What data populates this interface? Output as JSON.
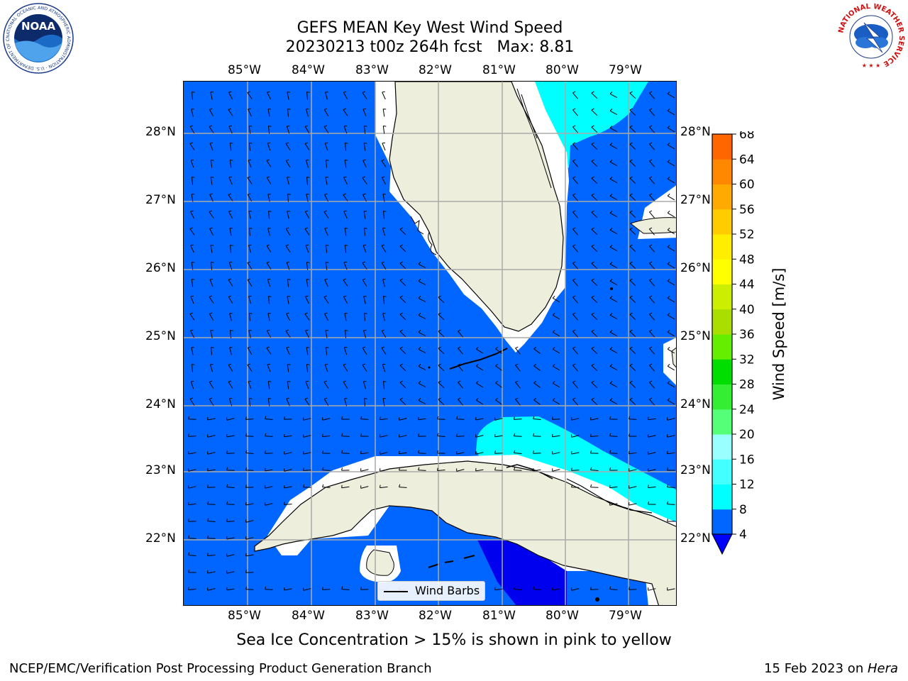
{
  "header": {
    "title_line1": "GEFS MEAN Key West Wind Speed",
    "title_line2": "20230213 t00z 264h fcst   Max: 8.81"
  },
  "map": {
    "lon_labels": [
      "85°W",
      "84°W",
      "83°W",
      "82°W",
      "81°W",
      "80°W",
      "79°W"
    ],
    "lat_labels": [
      "28°N",
      "27°N",
      "26°N",
      "25°N",
      "24°N",
      "23°N",
      "22°N"
    ],
    "legend_label": "Wind Barbs",
    "land_color": "#eeeedd",
    "grid_color": "#aaaaaa"
  },
  "colorbar": {
    "title": "Wind Speed [m/s]",
    "ticks": [
      "4",
      "8",
      "12",
      "16",
      "20",
      "24",
      "28",
      "32",
      "36",
      "40",
      "44",
      "48",
      "52",
      "56",
      "60",
      "64",
      "68"
    ],
    "colors": [
      "#0066ff",
      "#00ffff",
      "#44ffff",
      "#99ffff",
      "#55ff77",
      "#33ee33",
      "#00dd00",
      "#66ee00",
      "#aadd00",
      "#ccee00",
      "#ffff00",
      "#ffee00",
      "#ffcc00",
      "#ffaa00",
      "#ff8800",
      "#ff6600",
      "#ff3300",
      "#ff0000"
    ],
    "under_color": "#0000ff"
  },
  "notes": {
    "sea_ice": "Sea Ice Concentration > 15% is shown in pink to yellow"
  },
  "footer": {
    "org": "NCEP/EMC/Verification Post Processing Product Generation Branch",
    "date": "15 Feb 2023 on ",
    "machine": "Hera"
  },
  "logos": {
    "noaa_text": "NOAA",
    "noaa_ring": "NATIONAL OCEANIC AND ATMOSPHERIC ADMINISTRATION · U.S. DEPARTMENT OF COMMERCE ·",
    "nws_ring": "NATIONAL WEATHER SERVICE"
  }
}
